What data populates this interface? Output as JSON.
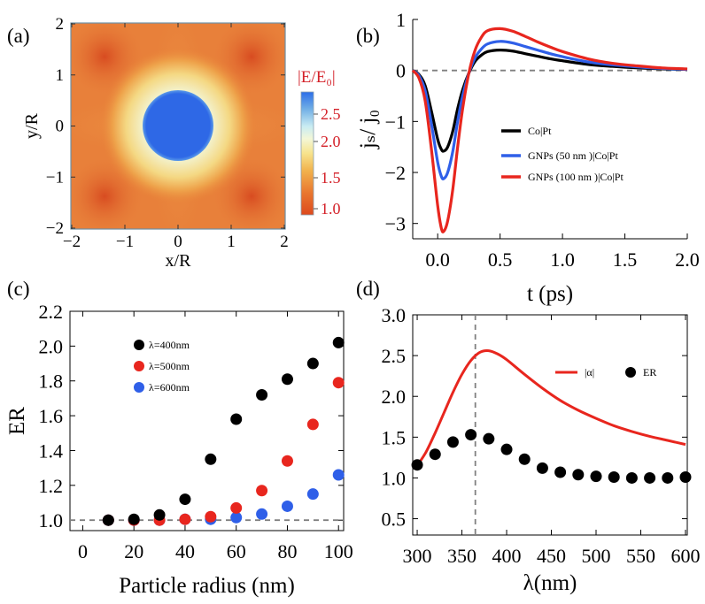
{
  "panels": {
    "a": {
      "label": "(a)",
      "colorbar_title": "|E/E₀|",
      "colorbar_ticks": [
        "2.5",
        "2.0",
        "1.5",
        "1.0"
      ]
    },
    "b": {
      "label": "(b)"
    },
    "c": {
      "label": "(c)"
    },
    "d": {
      "label": "(d)"
    }
  },
  "colors": {
    "black": "#000000",
    "blue": "#2f5fe8",
    "red": "#e8261e",
    "accent_red": "#d4222a",
    "dashed": "#808080"
  },
  "chart_data": [
    {
      "id": "a",
      "type": "heatmap",
      "xlabel": "x/R",
      "ylabel": "y/R",
      "xlim": [
        -2,
        2
      ],
      "ylim": [
        -2,
        2
      ],
      "xticks": [
        -2,
        -1,
        0,
        1,
        2
      ],
      "xtick_labels": [
        "−2",
        "−1",
        "0",
        "1",
        "2"
      ],
      "yticks": [
        -2,
        -1,
        0,
        1,
        2
      ],
      "ytick_labels": [
        "−2",
        "−1",
        "0",
        "1",
        "2"
      ],
      "field_range": [
        1.0,
        2.8
      ],
      "particle_radius": 0.6
    },
    {
      "id": "b",
      "type": "line",
      "xlabel": "t (ps)",
      "ylabel": "jₛ/ j₀",
      "xlim": [
        -0.2,
        2.0
      ],
      "ylim": [
        -3.3,
        1.0
      ],
      "xticks": [
        0.0,
        0.5,
        1.0,
        1.5,
        2.0
      ],
      "xtick_labels": [
        "0.0",
        "0.5",
        "1.0",
        "1.5",
        "2.0"
      ],
      "yticks": [
        1,
        0,
        -1,
        -2,
        -3
      ],
      "ytick_labels": [
        "1",
        "0",
        "−1",
        "−2",
        "−3"
      ],
      "t": [
        -0.2,
        -0.15,
        -0.1,
        -0.05,
        0.0,
        0.03,
        0.05,
        0.08,
        0.12,
        0.16,
        0.2,
        0.25,
        0.3,
        0.35,
        0.4,
        0.5,
        0.6,
        0.7,
        0.8,
        0.9,
        1.0,
        1.2,
        1.4,
        1.6,
        1.8,
        2.0
      ],
      "series": [
        {
          "name": "Co|Pt",
          "color": "#000000",
          "values": [
            0,
            -0.08,
            -0.3,
            -0.8,
            -1.35,
            -1.55,
            -1.58,
            -1.5,
            -1.2,
            -0.75,
            -0.38,
            -0.05,
            0.18,
            0.3,
            0.37,
            0.4,
            0.38,
            0.33,
            0.28,
            0.23,
            0.19,
            0.12,
            0.08,
            0.05,
            0.03,
            0.02
          ]
        },
        {
          "name": "GNPs (50 nm )|Co|Pt",
          "color": "#2f5fe8",
          "values": [
            0,
            -0.1,
            -0.4,
            -1.05,
            -1.8,
            -2.08,
            -2.12,
            -2.0,
            -1.6,
            -1.0,
            -0.5,
            -0.05,
            0.25,
            0.42,
            0.52,
            0.57,
            0.54,
            0.47,
            0.4,
            0.33,
            0.27,
            0.17,
            0.11,
            0.07,
            0.04,
            0.02
          ]
        },
        {
          "name": "GNPs (100 nm )|Co|Pt",
          "color": "#e8261e",
          "values": [
            0,
            -0.15,
            -0.6,
            -1.55,
            -2.65,
            -3.1,
            -3.15,
            -2.95,
            -2.35,
            -1.5,
            -0.75,
            -0.05,
            0.4,
            0.65,
            0.78,
            0.82,
            0.77,
            0.67,
            0.56,
            0.46,
            0.37,
            0.23,
            0.14,
            0.09,
            0.05,
            0.03
          ]
        }
      ],
      "reference_line": 0,
      "legend": "right"
    },
    {
      "id": "c",
      "type": "scatter",
      "xlabel": "Particle radius (nm)",
      "ylabel": "ER",
      "xlim": [
        -5,
        102
      ],
      "ylim": [
        0.94,
        2.2
      ],
      "xticks": [
        0,
        20,
        40,
        60,
        80,
        100
      ],
      "xtick_labels": [
        "0",
        "20",
        "40",
        "60",
        "80",
        "100"
      ],
      "yticks": [
        1.0,
        1.2,
        1.4,
        1.6,
        1.8,
        2.0,
        2.2
      ],
      "ytick_labels": [
        "1.0",
        "1.2",
        "1.4",
        "1.6",
        "1.8",
        "2.0",
        "2.2"
      ],
      "x": [
        10,
        20,
        30,
        40,
        50,
        60,
        70,
        80,
        90,
        100
      ],
      "series": [
        {
          "name": "λ=400nm",
          "color": "#000000",
          "values": [
            1.0,
            1.005,
            1.03,
            1.12,
            1.35,
            1.58,
            1.72,
            1.81,
            1.9,
            2.02
          ]
        },
        {
          "name": "λ=500nm",
          "color": "#e8261e",
          "values": [
            1.0,
            1.0,
            1.0,
            1.005,
            1.02,
            1.07,
            1.17,
            1.34,
            1.55,
            1.79
          ]
        },
        {
          "name": "λ=600nm",
          "color": "#2f5fe8",
          "values": [
            1.0,
            1.0,
            1.0,
            1.005,
            1.005,
            1.015,
            1.035,
            1.08,
            1.15,
            1.26
          ]
        }
      ],
      "reference_line": 1.0,
      "legend": "top-left"
    },
    {
      "id": "d",
      "type": "line",
      "xlabel": "λ(nm)",
      "ylabel": "",
      "xlim": [
        295,
        602
      ],
      "ylim": [
        0.3,
        3.0
      ],
      "xticks": [
        300,
        350,
        400,
        450,
        500,
        550,
        600
      ],
      "xtick_labels": [
        "300",
        "350",
        "400",
        "450",
        "500",
        "550",
        "600"
      ],
      "yticks": [
        0.5,
        1.0,
        1.5,
        2.0,
        2.5,
        3.0
      ],
      "ytick_labels": [
        "0.5",
        "1.0",
        "1.5",
        "2.0",
        "2.5",
        "3.0"
      ],
      "series": [
        {
          "name": "|α|",
          "kind": "line",
          "color": "#e8261e",
          "x": [
            300,
            310,
            320,
            330,
            340,
            350,
            360,
            370,
            380,
            390,
            400,
            420,
            440,
            460,
            480,
            500,
            520,
            540,
            560,
            580,
            600
          ],
          "values": [
            1.15,
            1.32,
            1.55,
            1.8,
            2.05,
            2.27,
            2.44,
            2.54,
            2.56,
            2.52,
            2.45,
            2.27,
            2.1,
            1.95,
            1.83,
            1.73,
            1.64,
            1.57,
            1.51,
            1.46,
            1.41
          ]
        },
        {
          "name": "ER",
          "kind": "scatter",
          "color": "#000000",
          "x": [
            300,
            320,
            340,
            360,
            380,
            400,
            420,
            440,
            460,
            480,
            500,
            520,
            540,
            560,
            580,
            600
          ],
          "values": [
            1.16,
            1.29,
            1.44,
            1.53,
            1.48,
            1.35,
            1.23,
            1.12,
            1.07,
            1.04,
            1.02,
            1.01,
            1.0,
            1.0,
            1.0,
            1.01
          ]
        }
      ],
      "vertical_line": 365,
      "legend": "top-right"
    }
  ]
}
